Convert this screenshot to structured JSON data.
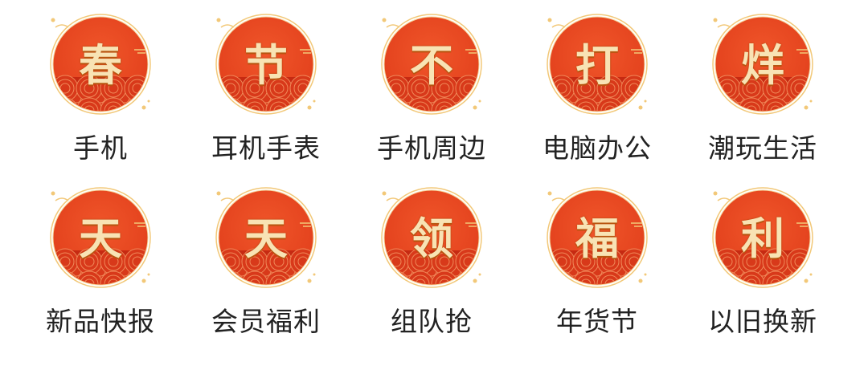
{
  "colors": {
    "badge_red": "#e2401c",
    "badge_dark_red": "#c62a12",
    "gold": "#f2c878",
    "glyph": "#f8e3b4",
    "label": "#222222"
  },
  "items": [
    {
      "glyph": "春",
      "label": "手机"
    },
    {
      "glyph": "节",
      "label": "耳机手表"
    },
    {
      "glyph": "不",
      "label": "手机周边"
    },
    {
      "glyph": "打",
      "label": "电脑办公"
    },
    {
      "glyph": "烊",
      "label": "潮玩生活"
    },
    {
      "glyph": "天",
      "label": "新品快报"
    },
    {
      "glyph": "天",
      "label": "会员福利"
    },
    {
      "glyph": "领",
      "label": "组队抢"
    },
    {
      "glyph": "福",
      "label": "年货节"
    },
    {
      "glyph": "利",
      "label": "以旧换新"
    }
  ]
}
